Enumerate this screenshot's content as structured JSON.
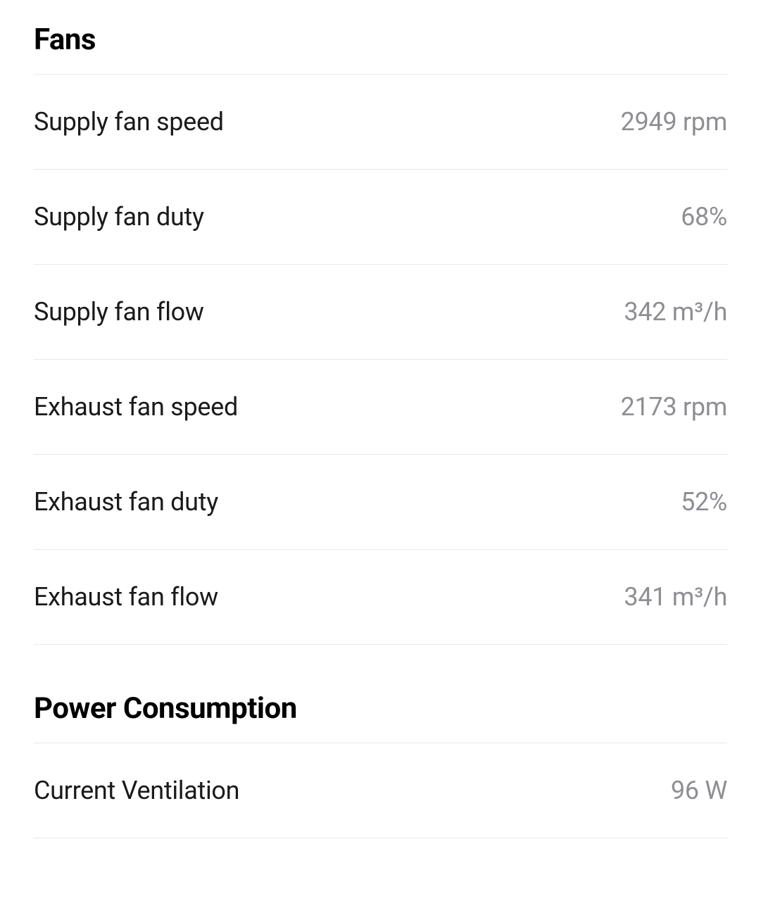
{
  "sections": {
    "fans": {
      "title": "Fans",
      "rows": [
        {
          "label": "Supply fan speed",
          "value": "2949 rpm"
        },
        {
          "label": "Supply fan duty",
          "value": "68%"
        },
        {
          "label": "Supply fan flow",
          "value": "342 m³/h"
        },
        {
          "label": "Exhaust fan speed",
          "value": "2173 rpm"
        },
        {
          "label": "Exhaust fan duty",
          "value": "52%"
        },
        {
          "label": "Exhaust fan flow",
          "value": "341 m³/h"
        }
      ]
    },
    "power": {
      "title": "Power Consumption",
      "rows": [
        {
          "label": "Current Ventilation",
          "value": "96 W"
        }
      ]
    }
  },
  "colors": {
    "background": "#ffffff",
    "title_text": "#000000",
    "label_text": "#1a1a1a",
    "value_text": "#8e8e93",
    "divider": "#e8e8e8"
  },
  "typography": {
    "title_fontsize": 42,
    "title_fontweight": 700,
    "row_fontsize": 36,
    "row_fontweight": 400
  }
}
